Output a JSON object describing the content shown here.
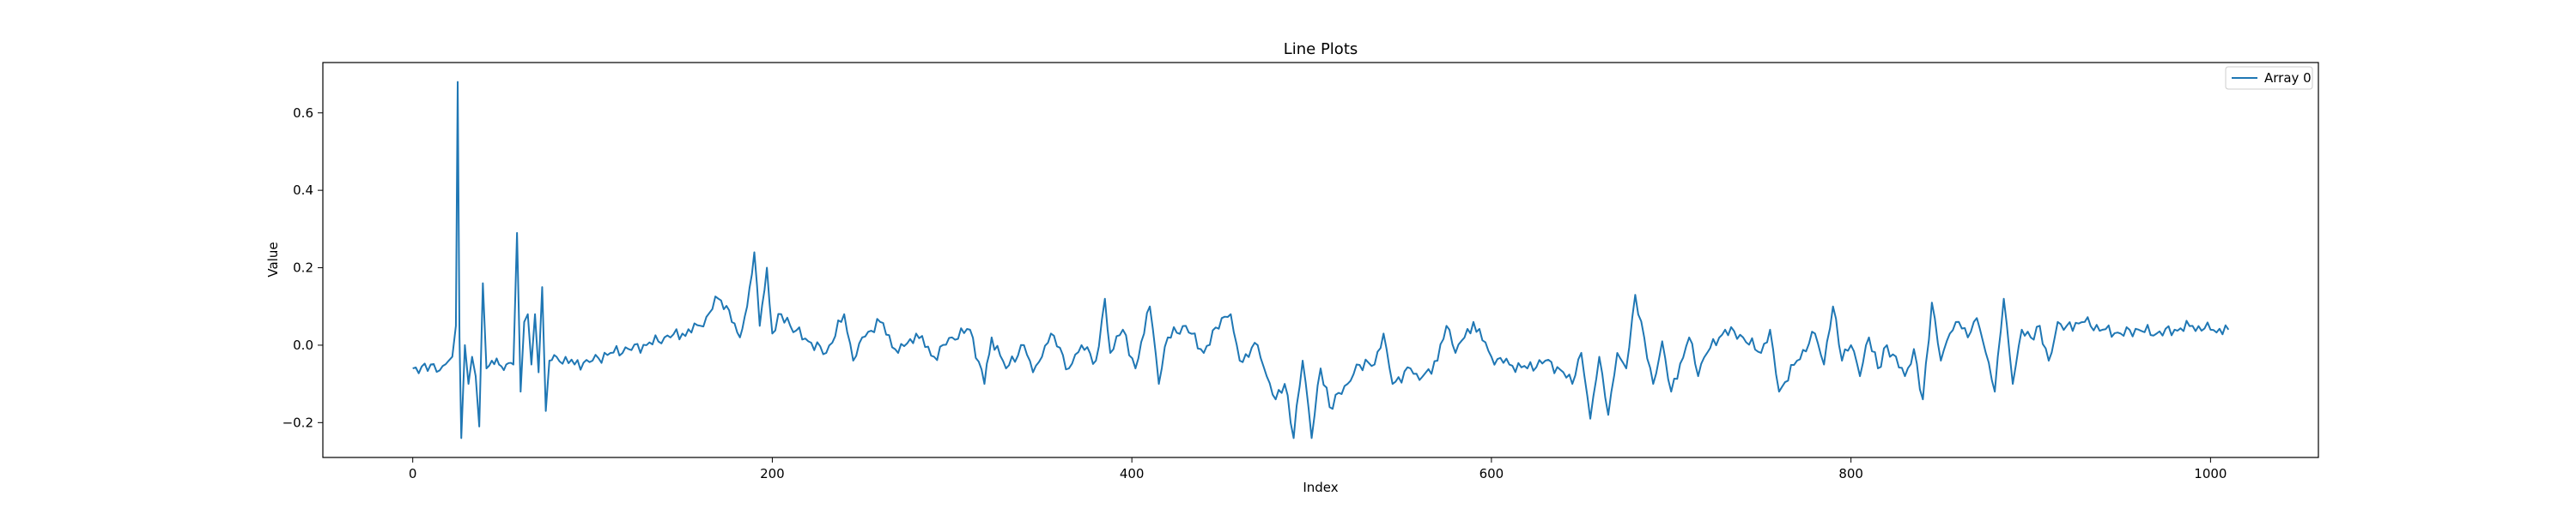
{
  "chart_data": {
    "type": "line",
    "title": "Line Plots",
    "xlabel": "Index",
    "ylabel": "Value",
    "xlim": [
      -50,
      1060
    ],
    "ylim": [
      -0.29,
      0.73
    ],
    "xticks": [
      0,
      200,
      400,
      600,
      800,
      1000
    ],
    "yticks": [
      -0.2,
      0.0,
      0.2,
      0.4,
      0.6
    ],
    "xtick_labels": [
      "0",
      "200",
      "400",
      "600",
      "800",
      "1000"
    ],
    "ytick_labels": [
      "−0.2",
      "0.0",
      "0.2",
      "0.4",
      "0.6"
    ],
    "grid": false,
    "legend_position": "top-right",
    "series": [
      {
        "name": "Array 0",
        "color": "#1f77b4",
        "keypoints": [
          [
            0,
            -0.06
          ],
          [
            5,
            -0.055
          ],
          [
            10,
            -0.05
          ],
          [
            15,
            -0.065
          ],
          [
            20,
            -0.04
          ],
          [
            22,
            -0.03
          ],
          [
            24,
            0.05
          ],
          [
            25,
            0.68
          ],
          [
            26,
            0.02
          ],
          [
            27,
            -0.24
          ],
          [
            29,
            0.0
          ],
          [
            31,
            -0.1
          ],
          [
            33,
            -0.03
          ],
          [
            35,
            -0.08
          ],
          [
            37,
            -0.21
          ],
          [
            39,
            0.16
          ],
          [
            41,
            -0.06
          ],
          [
            44,
            -0.04
          ],
          [
            48,
            -0.05
          ],
          [
            52,
            -0.05
          ],
          [
            56,
            -0.05
          ],
          [
            58,
            0.29
          ],
          [
            60,
            -0.12
          ],
          [
            62,
            0.06
          ],
          [
            64,
            0.08
          ],
          [
            66,
            -0.05
          ],
          [
            68,
            0.08
          ],
          [
            70,
            -0.07
          ],
          [
            72,
            0.15
          ],
          [
            74,
            -0.17
          ],
          [
            76,
            -0.04
          ],
          [
            80,
            -0.03
          ],
          [
            90,
            -0.05
          ],
          [
            100,
            -0.04
          ],
          [
            110,
            -0.02
          ],
          [
            120,
            -0.01
          ],
          [
            130,
            0.0
          ],
          [
            140,
            0.02
          ],
          [
            150,
            0.03
          ],
          [
            160,
            0.05
          ],
          [
            170,
            0.12
          ],
          [
            176,
            0.09
          ],
          [
            182,
            0.02
          ],
          [
            186,
            0.1
          ],
          [
            190,
            0.24
          ],
          [
            193,
            0.05
          ],
          [
            197,
            0.2
          ],
          [
            200,
            0.03
          ],
          [
            205,
            0.08
          ],
          [
            210,
            0.05
          ],
          [
            220,
            0.01
          ],
          [
            230,
            -0.02
          ],
          [
            240,
            0.08
          ],
          [
            245,
            -0.04
          ],
          [
            250,
            0.02
          ],
          [
            260,
            0.06
          ],
          [
            270,
            -0.02
          ],
          [
            280,
            0.03
          ],
          [
            290,
            -0.03
          ],
          [
            300,
            0.02
          ],
          [
            310,
            0.04
          ],
          [
            318,
            -0.1
          ],
          [
            322,
            0.02
          ],
          [
            330,
            -0.06
          ],
          [
            340,
            0.0
          ],
          [
            345,
            -0.07
          ],
          [
            350,
            -0.03
          ],
          [
            355,
            0.03
          ],
          [
            365,
            -0.06
          ],
          [
            372,
            0.0
          ],
          [
            380,
            -0.04
          ],
          [
            385,
            0.12
          ],
          [
            388,
            -0.02
          ],
          [
            395,
            0.04
          ],
          [
            402,
            -0.06
          ],
          [
            410,
            0.1
          ],
          [
            415,
            -0.1
          ],
          [
            420,
            0.02
          ],
          [
            430,
            0.05
          ],
          [
            440,
            -0.02
          ],
          [
            450,
            0.07
          ],
          [
            455,
            0.08
          ],
          [
            460,
            -0.04
          ],
          [
            470,
            0.0
          ],
          [
            475,
            -0.08
          ],
          [
            480,
            -0.14
          ],
          [
            485,
            -0.1
          ],
          [
            490,
            -0.24
          ],
          [
            495,
            -0.04
          ],
          [
            500,
            -0.24
          ],
          [
            505,
            -0.06
          ],
          [
            510,
            -0.16
          ],
          [
            520,
            -0.1
          ],
          [
            525,
            -0.05
          ],
          [
            535,
            -0.05
          ],
          [
            540,
            0.03
          ],
          [
            545,
            -0.1
          ],
          [
            555,
            -0.06
          ],
          [
            560,
            -0.09
          ],
          [
            570,
            -0.04
          ],
          [
            575,
            0.05
          ],
          [
            580,
            -0.02
          ],
          [
            590,
            0.06
          ],
          [
            600,
            -0.03
          ],
          [
            610,
            -0.05
          ],
          [
            620,
            -0.06
          ],
          [
            630,
            -0.04
          ],
          [
            640,
            -0.07
          ],
          [
            645,
            -0.1
          ],
          [
            650,
            -0.02
          ],
          [
            655,
            -0.19
          ],
          [
            660,
            -0.03
          ],
          [
            665,
            -0.18
          ],
          [
            670,
            -0.02
          ],
          [
            675,
            -0.06
          ],
          [
            680,
            0.13
          ],
          [
            685,
            0.02
          ],
          [
            690,
            -0.1
          ],
          [
            695,
            0.01
          ],
          [
            700,
            -0.12
          ],
          [
            710,
            0.02
          ],
          [
            715,
            -0.08
          ],
          [
            720,
            -0.02
          ],
          [
            730,
            0.04
          ],
          [
            740,
            0.02
          ],
          [
            750,
            -0.02
          ],
          [
            755,
            0.04
          ],
          [
            760,
            -0.12
          ],
          [
            770,
            -0.04
          ],
          [
            780,
            0.03
          ],
          [
            785,
            -0.05
          ],
          [
            790,
            0.1
          ],
          [
            795,
            -0.04
          ],
          [
            800,
            0.0
          ],
          [
            805,
            -0.08
          ],
          [
            810,
            0.02
          ],
          [
            815,
            -0.06
          ],
          [
            820,
            0.0
          ],
          [
            830,
            -0.08
          ],
          [
            835,
            -0.01
          ],
          [
            840,
            -0.14
          ],
          [
            845,
            0.11
          ],
          [
            850,
            -0.04
          ],
          [
            855,
            0.03
          ],
          [
            860,
            0.06
          ],
          [
            865,
            0.02
          ],
          [
            870,
            0.07
          ],
          [
            875,
            -0.02
          ],
          [
            880,
            -0.12
          ],
          [
            885,
            0.12
          ],
          [
            890,
            -0.1
          ],
          [
            895,
            0.04
          ],
          [
            900,
            0.02
          ],
          [
            905,
            0.05
          ],
          [
            910,
            -0.04
          ],
          [
            915,
            0.06
          ],
          [
            920,
            0.05
          ],
          [
            930,
            0.06
          ],
          [
            940,
            0.04
          ],
          [
            950,
            0.03
          ],
          [
            960,
            0.04
          ],
          [
            970,
            0.03
          ],
          [
            980,
            0.04
          ],
          [
            990,
            0.05
          ],
          [
            1000,
            0.04
          ],
          [
            1010,
            0.04
          ]
        ]
      }
    ]
  }
}
